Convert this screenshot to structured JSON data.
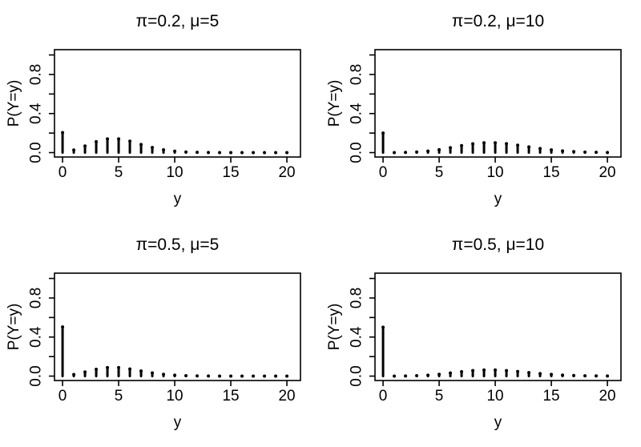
{
  "figure": {
    "background": "#ffffff",
    "ink_color": "#000000",
    "layout": "2x2 grid of base-R spike (type=h) probability plots"
  },
  "chart_data": [
    {
      "type": "bar",
      "style": "spike",
      "title": "π=0.2, μ=5",
      "xlabel": "y",
      "ylabel": "P(Y=y)",
      "x": [
        0,
        1,
        2,
        3,
        4,
        5,
        6,
        7,
        8,
        9,
        10,
        11,
        12,
        13,
        14,
        15,
        16,
        17,
        18,
        19,
        20
      ],
      "values": [
        0.20539,
        0.02695,
        0.06738,
        0.1123,
        0.14037,
        0.14037,
        0.11698,
        0.08356,
        0.05222,
        0.02901,
        0.01451,
        0.00659,
        0.00275,
        0.00106,
        0.00038,
        0.00013,
        4e-05,
        1e-05,
        0.0,
        0.0,
        0.0
      ],
      "xticks": [
        0,
        5,
        10,
        15,
        20
      ],
      "xtick_labels": [
        "0",
        "5",
        "10",
        "15",
        "20"
      ],
      "yticks": [
        0,
        0.2,
        0.4,
        0.6,
        0.8,
        1.0
      ],
      "ytick_labels": [
        "0.0",
        "",
        "0.4",
        "",
        "0.8",
        ""
      ],
      "xlim": [
        -0.72,
        21.21
      ],
      "ylim": [
        -0.045,
        1.054
      ],
      "grid": false,
      "legend": null
    },
    {
      "type": "bar",
      "style": "spike",
      "title": "π=0.2, μ=10",
      "xlabel": "y",
      "ylabel": "P(Y=y)",
      "x": [
        0,
        1,
        2,
        3,
        4,
        5,
        6,
        7,
        8,
        9,
        10,
        11,
        12,
        13,
        14,
        15,
        16,
        17,
        18,
        19,
        20
      ],
      "values": [
        0.20004,
        0.00036,
        0.00182,
        0.00605,
        0.01513,
        0.03027,
        0.05044,
        0.07206,
        0.09008,
        0.10009,
        0.10009,
        0.09099,
        0.07582,
        0.05833,
        0.04166,
        0.02777,
        0.01736,
        0.01021,
        0.00567,
        0.00299,
        0.00149
      ],
      "xticks": [
        0,
        5,
        10,
        15,
        20
      ],
      "xtick_labels": [
        "0",
        "5",
        "10",
        "15",
        "20"
      ],
      "yticks": [
        0,
        0.2,
        0.4,
        0.6,
        0.8,
        1.0
      ],
      "ytick_labels": [
        "0.0",
        "",
        "0.4",
        "",
        "0.8",
        ""
      ],
      "xlim": [
        -0.72,
        21.21
      ],
      "ylim": [
        -0.045,
        1.054
      ],
      "grid": false,
      "legend": null
    },
    {
      "type": "bar",
      "style": "spike",
      "title": "π=0.5, μ=5",
      "xlabel": "y",
      "ylabel": "P(Y=y)",
      "x": [
        0,
        1,
        2,
        3,
        4,
        5,
        6,
        7,
        8,
        9,
        10,
        11,
        12,
        13,
        14,
        15,
        16,
        17,
        18,
        19,
        20
      ],
      "values": [
        0.50337,
        0.01684,
        0.04211,
        0.07019,
        0.08773,
        0.08773,
        0.07311,
        0.05222,
        0.03264,
        0.01813,
        0.00907,
        0.00412,
        0.00172,
        0.00066,
        0.00024,
        8e-05,
        2e-05,
        1e-05,
        0.0,
        0.0,
        0.0
      ],
      "xticks": [
        0,
        5,
        10,
        15,
        20
      ],
      "xtick_labels": [
        "0",
        "5",
        "10",
        "15",
        "20"
      ],
      "yticks": [
        0,
        0.2,
        0.4,
        0.6,
        0.8,
        1.0
      ],
      "ytick_labels": [
        "0.0",
        "",
        "0.4",
        "",
        "0.8",
        ""
      ],
      "xlim": [
        -0.72,
        21.21
      ],
      "ylim": [
        -0.045,
        1.054
      ],
      "grid": false,
      "legend": null
    },
    {
      "type": "bar",
      "style": "spike",
      "title": "π=0.5, μ=10",
      "xlabel": "y",
      "ylabel": "P(Y=y)",
      "x": [
        0,
        1,
        2,
        3,
        4,
        5,
        6,
        7,
        8,
        9,
        10,
        11,
        12,
        13,
        14,
        15,
        16,
        17,
        18,
        19,
        20
      ],
      "values": [
        0.50002,
        0.00023,
        0.00113,
        0.00378,
        0.00946,
        0.01892,
        0.03153,
        0.04504,
        0.0563,
        0.06256,
        0.06256,
        0.05687,
        0.04739,
        0.03645,
        0.02604,
        0.01736,
        0.01085,
        0.00638,
        0.00355,
        0.00187,
        0.00093
      ],
      "xticks": [
        0,
        5,
        10,
        15,
        20
      ],
      "xtick_labels": [
        "0",
        "5",
        "10",
        "15",
        "20"
      ],
      "yticks": [
        0,
        0.2,
        0.4,
        0.6,
        0.8,
        1.0
      ],
      "ytick_labels": [
        "0.0",
        "",
        "0.4",
        "",
        "0.8",
        ""
      ],
      "xlim": [
        -0.72,
        21.21
      ],
      "ylim": [
        -0.045,
        1.054
      ],
      "grid": false,
      "legend": null
    }
  ]
}
